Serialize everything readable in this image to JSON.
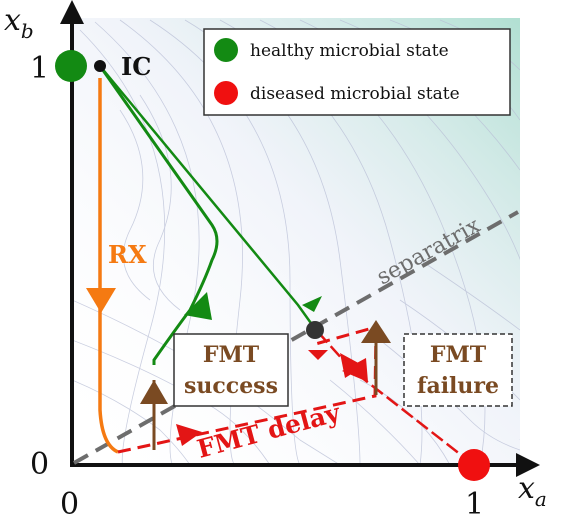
{
  "axes": {
    "x_label": "x",
    "x_sub": "a",
    "y_label": "x",
    "y_sub": "b",
    "x_ticks": [
      "0",
      "1"
    ],
    "y_ticks": [
      "0",
      "1"
    ]
  },
  "legend": {
    "healthy": {
      "label": "healthy microbial state",
      "color": "#138a13"
    },
    "diseased": {
      "label": "diseased microbial state",
      "color": "#f01010"
    }
  },
  "labels": {
    "ic": "IC",
    "rx": "RX",
    "separatrix": "separatrix",
    "fmt_success": [
      "FMT",
      "success"
    ],
    "fmt_failure": [
      "FMT",
      "failure"
    ],
    "fmt_delay": "FMT delay"
  },
  "colors": {
    "green": "#138a13",
    "orange": "#f57a12",
    "red": "#e31515",
    "brown": "#7a4a22",
    "gray": "#6d6d6d",
    "background_tint": "#9fd6c8"
  }
}
